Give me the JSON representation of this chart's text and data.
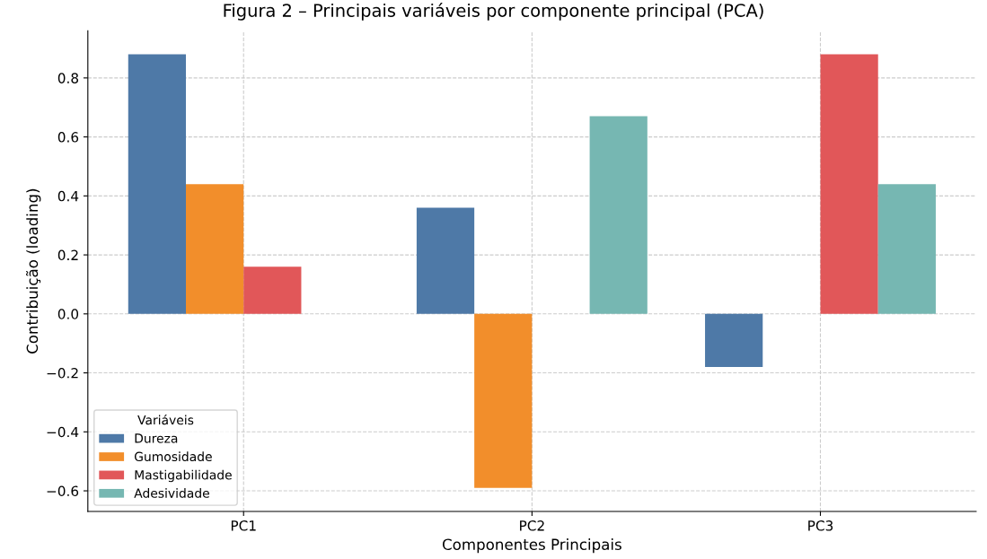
{
  "chart_data": {
    "type": "bar",
    "title": "Figura 2 – Principais variáveis por componente principal (PCA)",
    "xlabel": "Componentes Principais",
    "ylabel": "Contribuição (loading)",
    "legend_title": "Variáveis",
    "categories": [
      "PC1",
      "PC2",
      "PC3"
    ],
    "series": [
      {
        "name": "Dureza",
        "color": "#4e79a7",
        "values": [
          0.88,
          0.36,
          -0.18
        ]
      },
      {
        "name": "Gumosidade",
        "color": "#f28e2b",
        "values": [
          0.44,
          -0.59,
          0
        ]
      },
      {
        "name": "Mastigabilidade",
        "color": "#e15759",
        "values": [
          0.16,
          0,
          0.88
        ]
      },
      {
        "name": "Adesividade",
        "color": "#76b7b2",
        "values": [
          0,
          0.67,
          0.44
        ]
      }
    ],
    "ylim": [
      -0.67,
      0.96
    ],
    "yticks": [
      {
        "value": -0.6,
        "label": "−0.6"
      },
      {
        "value": -0.4,
        "label": "−0.4"
      },
      {
        "value": -0.2,
        "label": "−0.2"
      },
      {
        "value": 0,
        "label": "0.0"
      },
      0.2,
      0.4,
      0.6,
      0.8
    ],
    "grid": true,
    "legend": "bottom left"
  }
}
